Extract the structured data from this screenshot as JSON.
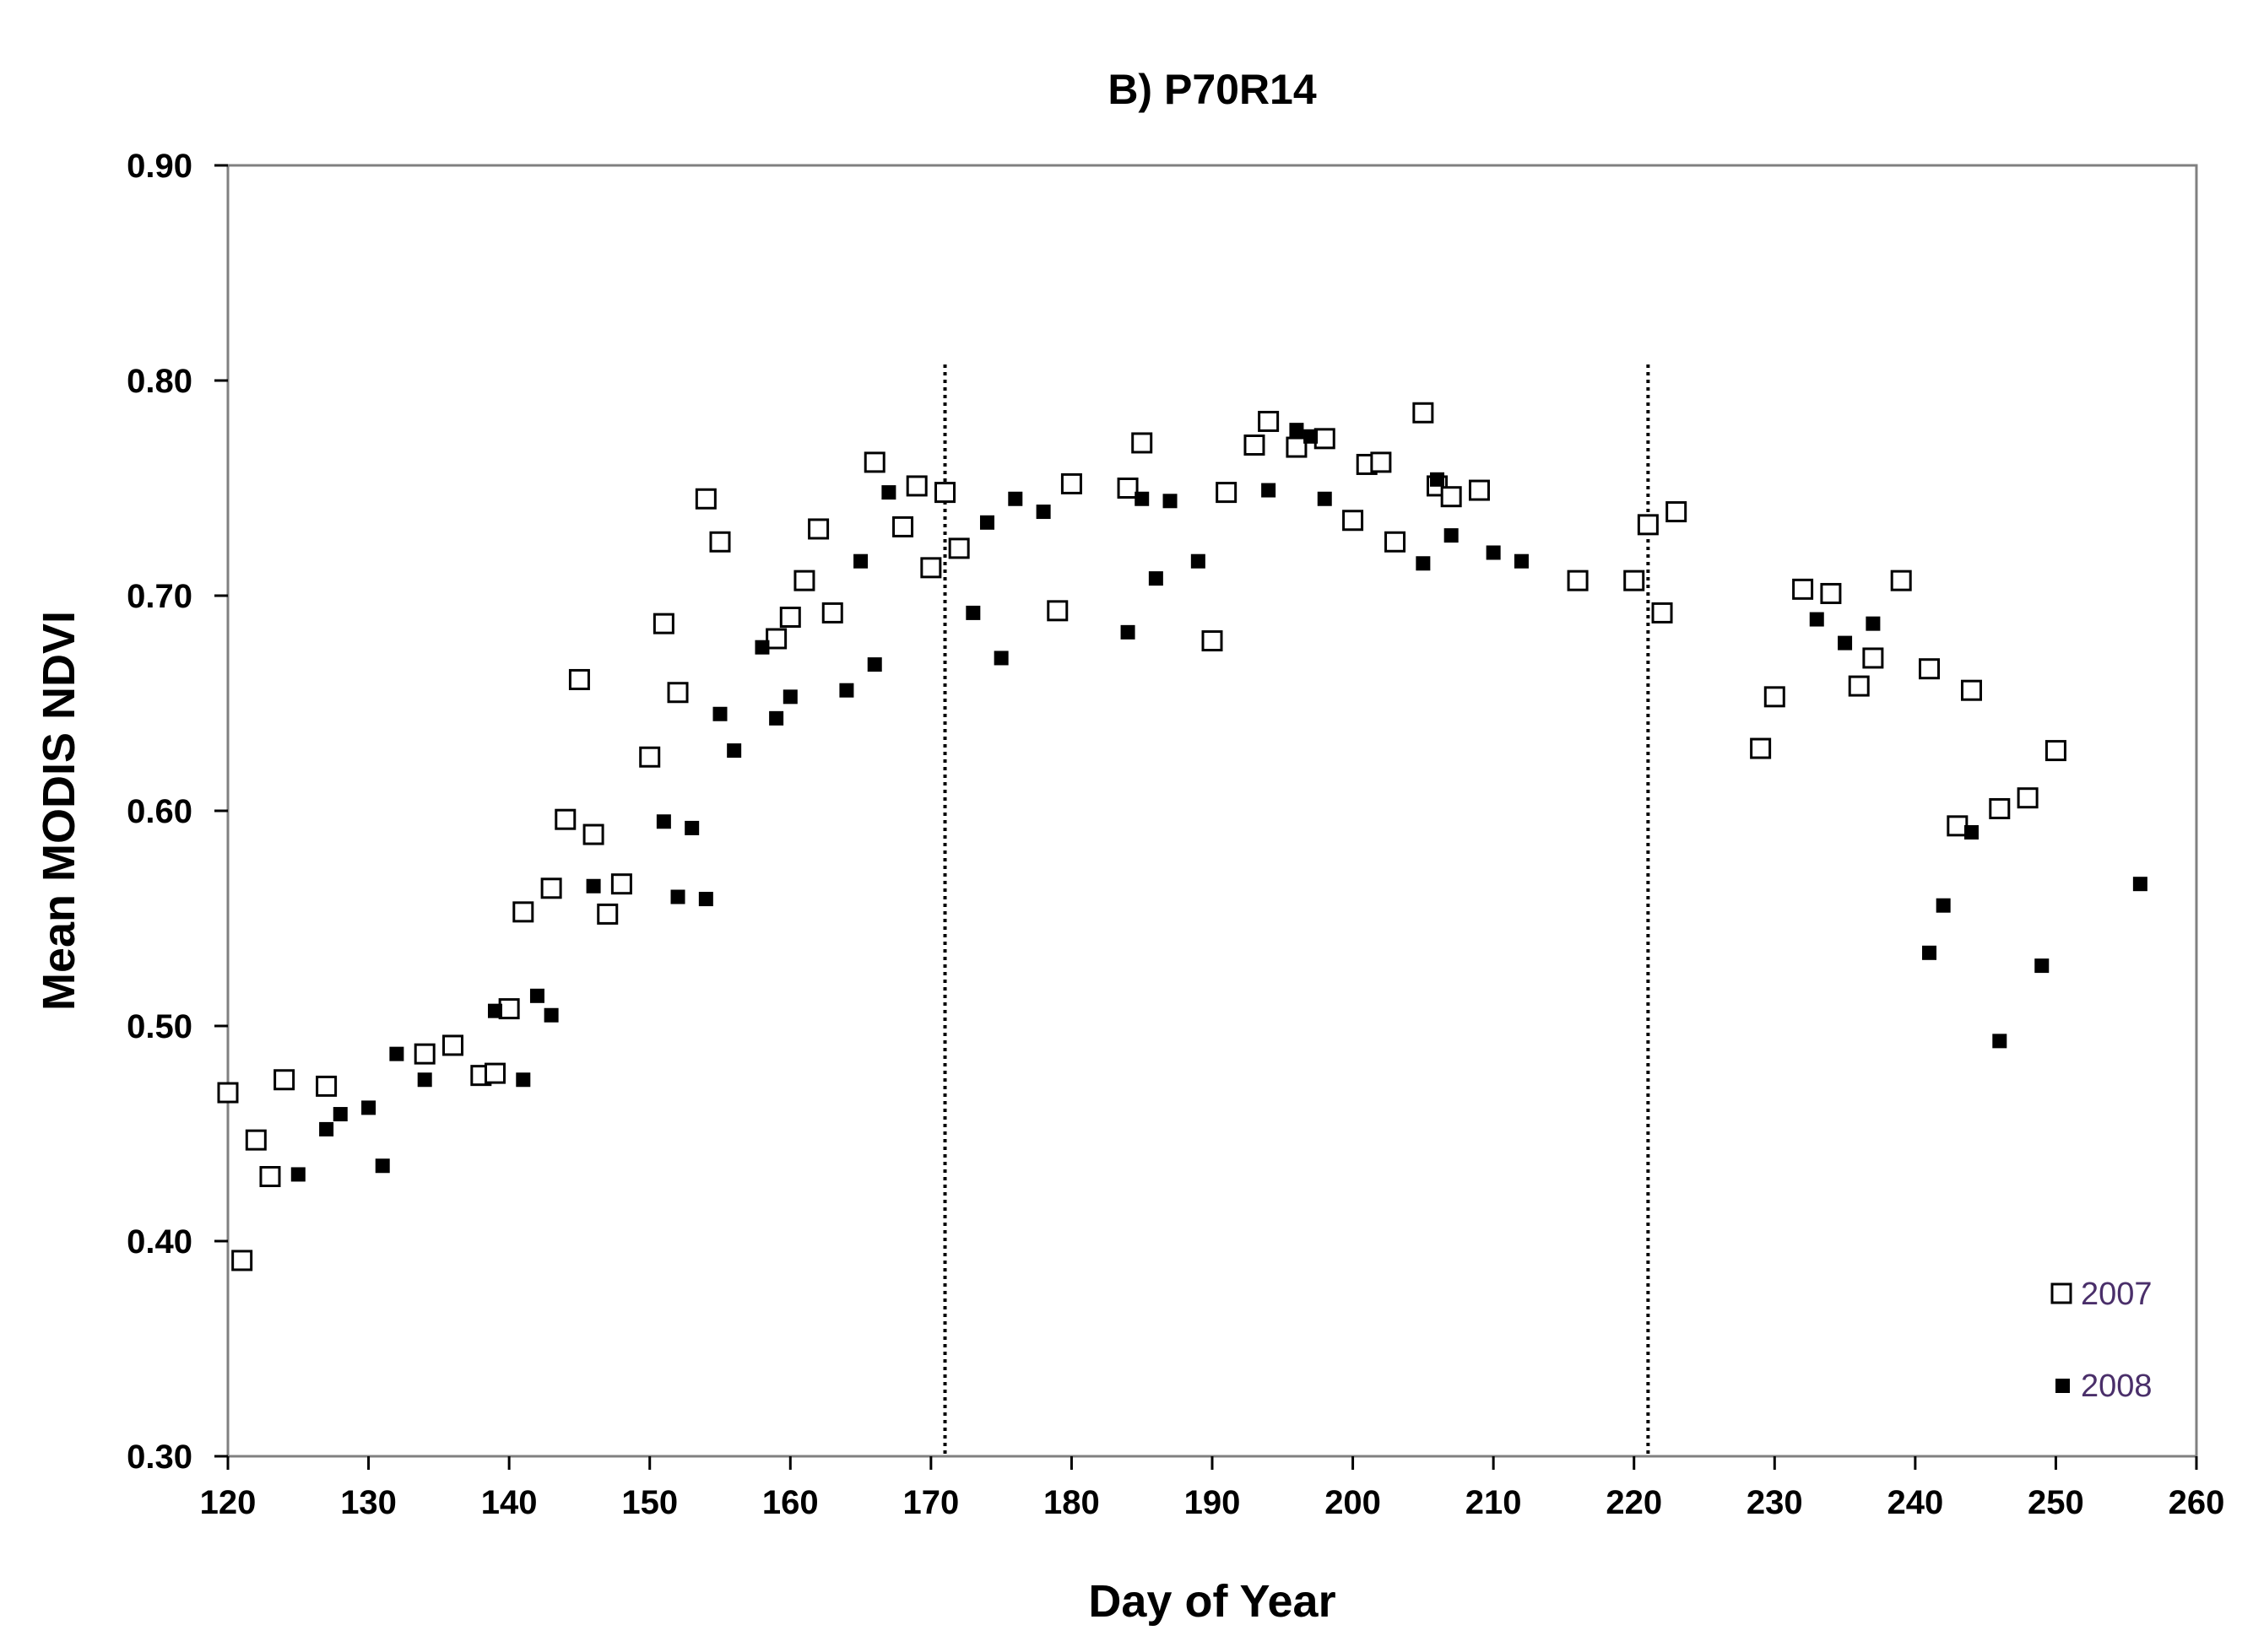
{
  "chart_data": {
    "type": "scatter",
    "title": "B)  P70R14",
    "xlabel": "Day of Year",
    "ylabel": "Mean MODIS NDVI",
    "xlim": [
      120,
      260
    ],
    "ylim": [
      0.3,
      0.9
    ],
    "x_ticks": [
      "120",
      "130",
      "140",
      "150",
      "160",
      "170",
      "180",
      "190",
      "200",
      "210",
      "220",
      "230",
      "240",
      "250",
      "260"
    ],
    "y_ticks": [
      "0.90",
      "0.80",
      "0.70",
      "0.60",
      "0.50",
      "0.40",
      "0.30"
    ],
    "x_tick_values": [
      120,
      130,
      140,
      150,
      160,
      170,
      180,
      190,
      200,
      210,
      220,
      230,
      240,
      250,
      260
    ],
    "y_tick_values": [
      0.9,
      0.8,
      0.7,
      0.6,
      0.5,
      0.4,
      0.3
    ],
    "reference_lines_x": [
      171,
      221
    ],
    "grid": false,
    "legend_position": "bottom-right",
    "series": [
      {
        "name": "2007",
        "marker": "open-square",
        "points": [
          [
            120,
            0.469
          ],
          [
            121,
            0.391
          ],
          [
            122,
            0.447
          ],
          [
            123,
            0.43
          ],
          [
            124,
            0.475
          ],
          [
            127,
            0.472
          ],
          [
            134,
            0.487
          ],
          [
            136,
            0.491
          ],
          [
            138,
            0.477
          ],
          [
            139,
            0.478
          ],
          [
            140,
            0.508
          ],
          [
            141,
            0.553
          ],
          [
            143,
            0.564
          ],
          [
            144,
            0.596
          ],
          [
            145,
            0.661
          ],
          [
            146,
            0.589
          ],
          [
            147,
            0.552
          ],
          [
            148,
            0.566
          ],
          [
            150,
            0.625
          ],
          [
            151,
            0.687
          ],
          [
            152,
            0.655
          ],
          [
            154,
            0.745
          ],
          [
            155,
            0.725
          ],
          [
            159,
            0.68
          ],
          [
            160,
            0.69
          ],
          [
            161,
            0.707
          ],
          [
            162,
            0.731
          ],
          [
            163,
            0.692
          ],
          [
            166,
            0.762
          ],
          [
            168,
            0.732
          ],
          [
            169,
            0.751
          ],
          [
            170,
            0.713
          ],
          [
            171,
            0.748
          ],
          [
            172,
            0.722
          ],
          [
            179,
            0.693
          ],
          [
            180,
            0.752
          ],
          [
            184,
            0.75
          ],
          [
            185,
            0.771
          ],
          [
            190,
            0.679
          ],
          [
            191,
            0.748
          ],
          [
            193,
            0.77
          ],
          [
            194,
            0.781
          ],
          [
            196,
            0.769
          ],
          [
            198,
            0.773
          ],
          [
            200,
            0.735
          ],
          [
            201,
            0.761
          ],
          [
            202,
            0.762
          ],
          [
            203,
            0.725
          ],
          [
            205,
            0.785
          ],
          [
            206,
            0.751
          ],
          [
            207,
            0.746
          ],
          [
            209,
            0.749
          ],
          [
            216,
            0.707
          ],
          [
            220,
            0.707
          ],
          [
            221,
            0.733
          ],
          [
            222,
            0.692
          ],
          [
            223,
            0.739
          ],
          [
            229,
            0.629
          ],
          [
            230,
            0.653
          ],
          [
            232,
            0.703
          ],
          [
            234,
            0.701
          ],
          [
            236,
            0.658
          ],
          [
            237,
            0.671
          ],
          [
            239,
            0.707
          ],
          [
            241,
            0.666
          ],
          [
            243,
            0.593
          ],
          [
            244,
            0.656
          ],
          [
            246,
            0.601
          ],
          [
            248,
            0.606
          ],
          [
            250,
            0.628
          ]
        ]
      },
      {
        "name": "2008",
        "marker": "filled-square",
        "points": [
          [
            125,
            0.431
          ],
          [
            127,
            0.452
          ],
          [
            128,
            0.459
          ],
          [
            130,
            0.462
          ],
          [
            131,
            0.435
          ],
          [
            132,
            0.487
          ],
          [
            134,
            0.475
          ],
          [
            139,
            0.507
          ],
          [
            141,
            0.475
          ],
          [
            142,
            0.514
          ],
          [
            143,
            0.505
          ],
          [
            146,
            0.565
          ],
          [
            151,
            0.595
          ],
          [
            152,
            0.56
          ],
          [
            153,
            0.592
          ],
          [
            154,
            0.559
          ],
          [
            155,
            0.645
          ],
          [
            156,
            0.628
          ],
          [
            158,
            0.676
          ],
          [
            159,
            0.643
          ],
          [
            160,
            0.653
          ],
          [
            164,
            0.656
          ],
          [
            165,
            0.716
          ],
          [
            166,
            0.668
          ],
          [
            167,
            0.748
          ],
          [
            173,
            0.692
          ],
          [
            174,
            0.734
          ],
          [
            175,
            0.671
          ],
          [
            176,
            0.745
          ],
          [
            178,
            0.739
          ],
          [
            184,
            0.683
          ],
          [
            185,
            0.745
          ],
          [
            186,
            0.708
          ],
          [
            187,
            0.744
          ],
          [
            189,
            0.716
          ],
          [
            194,
            0.749
          ],
          [
            196,
            0.777
          ],
          [
            197,
            0.774
          ],
          [
            198,
            0.745
          ],
          [
            205,
            0.715
          ],
          [
            206,
            0.754
          ],
          [
            207,
            0.728
          ],
          [
            210,
            0.72
          ],
          [
            212,
            0.716
          ],
          [
            233,
            0.689
          ],
          [
            235,
            0.678
          ],
          [
            237,
            0.687
          ],
          [
            241,
            0.534
          ],
          [
            242,
            0.556
          ],
          [
            244,
            0.59
          ],
          [
            246,
            0.493
          ],
          [
            249,
            0.528
          ],
          [
            256,
            0.566
          ]
        ]
      }
    ]
  },
  "legend": {
    "items": [
      {
        "label": "2007"
      },
      {
        "label": "2008"
      }
    ]
  }
}
